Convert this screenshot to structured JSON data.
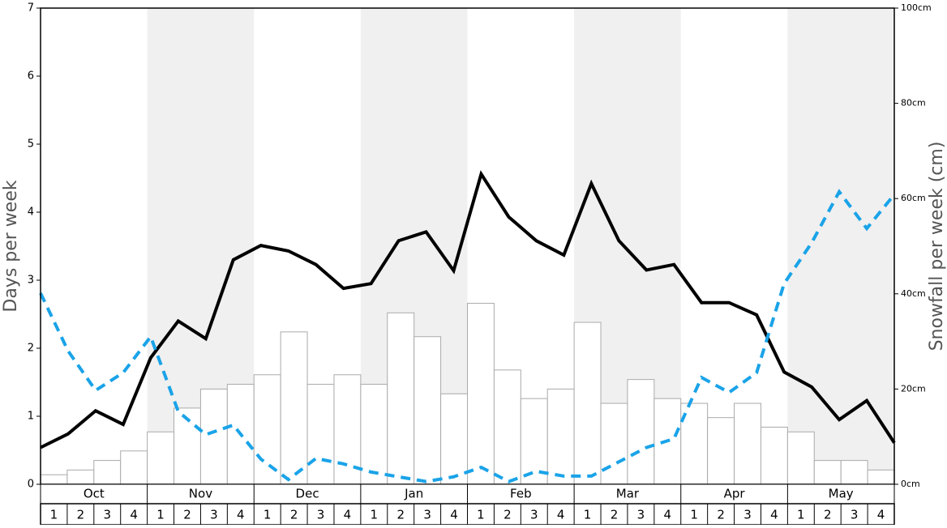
{
  "chart_data": {
    "type": "bar_line",
    "ylabel": "Days per week",
    "y2label": "Snowfall per week (cm)",
    "months": [
      "Oct",
      "Nov",
      "Dec",
      "Jan",
      "Feb",
      "Mar",
      "Apr",
      "May"
    ],
    "categories": [
      "1",
      "2",
      "3",
      "4",
      "1",
      "2",
      "3",
      "4",
      "1",
      "2",
      "3",
      "4",
      "1",
      "2",
      "3",
      "4",
      "1",
      "2",
      "3",
      "4",
      "1",
      "2",
      "3",
      "4",
      "1",
      "2",
      "3",
      "4",
      "1",
      "2",
      "3",
      "4"
    ],
    "ylim": [
      0,
      7
    ],
    "yticks": [
      0,
      1,
      2,
      3,
      4,
      5,
      6,
      7
    ],
    "y2lim": [
      0,
      100
    ],
    "y2ticks": [
      {
        "value": 0,
        "label": "0cm"
      },
      {
        "value": 20,
        "label": "20cm"
      },
      {
        "value": 40,
        "label": "40cm"
      },
      {
        "value": 60,
        "label": "60cm"
      },
      {
        "value": 80,
        "label": "80cm"
      },
      {
        "value": 100,
        "label": "100cm"
      }
    ],
    "series": [
      {
        "type": "bar",
        "axis": "y2",
        "color": "#ffffff",
        "values": [
          2,
          3,
          5,
          7,
          11,
          16,
          20,
          21,
          23,
          32,
          21,
          23,
          21,
          36,
          31,
          19,
          38,
          24,
          18,
          20,
          34,
          17,
          22,
          18,
          17,
          14,
          17,
          12,
          11,
          5,
          5,
          3
        ]
      },
      {
        "type": "line",
        "color": "#000000",
        "values": [
          0.54,
          0.74,
          1.08,
          0.88,
          1.86,
          2.4,
          2.14,
          3.3,
          3.51,
          3.43,
          3.23,
          2.88,
          2.95,
          3.58,
          3.71,
          3.14,
          4.56,
          3.93,
          3.58,
          3.37,
          4.42,
          3.58,
          3.15,
          3.23,
          2.67,
          2.67,
          2.49,
          1.65,
          1.43,
          0.95,
          1.23,
          0.61
        ]
      },
      {
        "type": "line",
        "dashed": true,
        "color": "#1aa3e8",
        "values": [
          2.81,
          1.96,
          1.38,
          1.64,
          2.17,
          1.07,
          0.73,
          0.87,
          0.37,
          0.07,
          0.38,
          0.3,
          0.18,
          0.11,
          0.04,
          0.11,
          0.25,
          0.04,
          0.19,
          0.12,
          0.12,
          0.33,
          0.54,
          0.67,
          1.57,
          1.35,
          1.64,
          2.95,
          3.55,
          4.3,
          3.76,
          4.26
        ]
      }
    ]
  }
}
